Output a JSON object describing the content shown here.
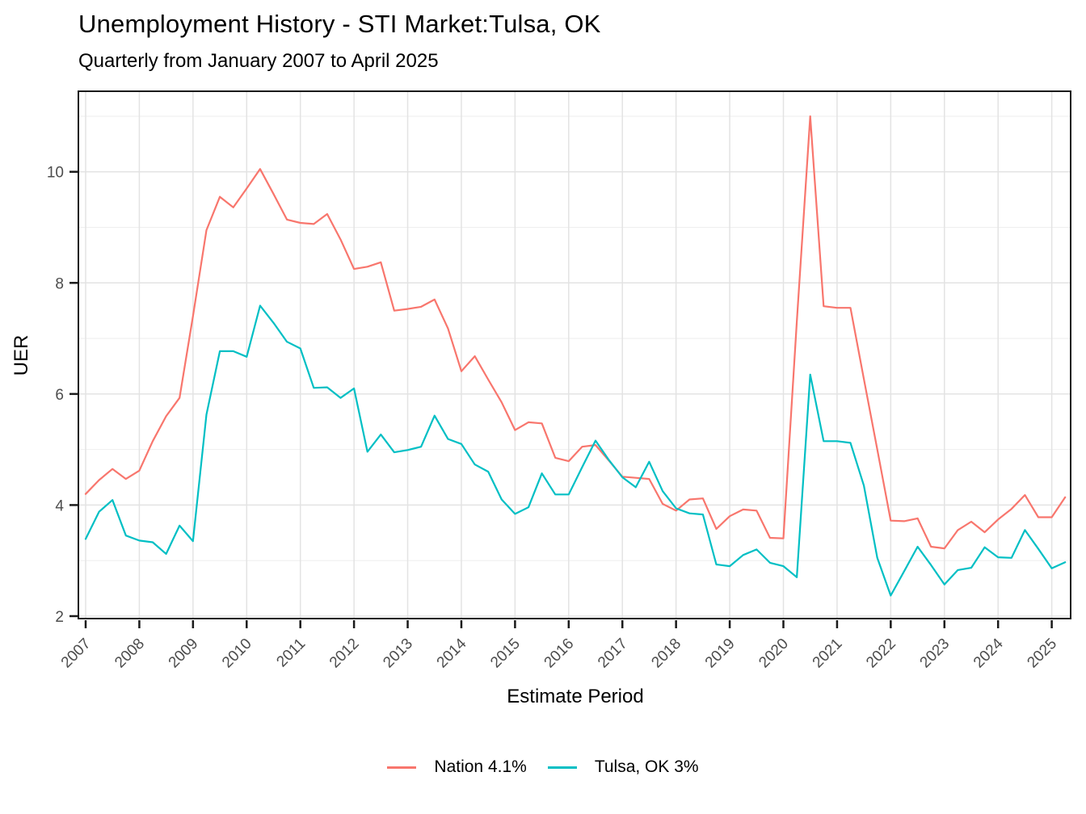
{
  "header": {
    "title": "Unemployment History - STI Market:Tulsa, OK",
    "subtitle": "Quarterly from January 2007 to April 2025"
  },
  "axes": {
    "x_title": "Estimate Period",
    "y_title": "UER",
    "x_tick_labels": [
      "2007",
      "2008",
      "2009",
      "2010",
      "2011",
      "2012",
      "2013",
      "2014",
      "2015",
      "2016",
      "2017",
      "2018",
      "2019",
      "2020",
      "2021",
      "2022",
      "2023",
      "2024",
      "2025"
    ],
    "y_tick_labels": [
      "2",
      "4",
      "6",
      "8",
      "10"
    ]
  },
  "legend": {
    "items": [
      {
        "label": "Nation 4.1%",
        "color": "#F8766D"
      },
      {
        "label": "Tulsa, OK 3%",
        "color": "#00BFC4"
      }
    ]
  },
  "chart_data": {
    "type": "line",
    "title": "Unemployment History - STI Market:Tulsa, OK",
    "subtitle": "Quarterly from January 2007 to April 2025",
    "xlabel": "Estimate Period",
    "ylabel": "UER",
    "x_start_year": 2007.0,
    "x_step_years": 0.25,
    "x_end_label": "April 2025",
    "xlim": [
      2006.8645,
      2025.352
    ],
    "ylim": [
      1.956,
      11.45
    ],
    "x_major_breaks": [
      2007,
      2008,
      2009,
      2010,
      2011,
      2012,
      2013,
      2014,
      2015,
      2016,
      2017,
      2018,
      2019,
      2020,
      2021,
      2022,
      2023,
      2024,
      2025
    ],
    "y_major_breaks": [
      2,
      4,
      6,
      8,
      10
    ],
    "y_minor_breaks": [
      3,
      5,
      7,
      9,
      11
    ],
    "grid": "on",
    "legend_position": "bottom",
    "colors": {
      "major_grid": "#e3e3e3",
      "minor_grid": "#eeeeee",
      "panel_border": "#1a1a1a",
      "tick_label": "#4d4d4d"
    },
    "series": [
      {
        "name": "Nation 4.1%",
        "color": "#F8766D",
        "values": [
          4.2,
          4.45,
          4.65,
          4.47,
          4.62,
          5.15,
          5.6,
          5.93,
          7.4,
          8.95,
          9.55,
          9.36,
          9.7,
          10.05,
          9.6,
          9.14,
          9.08,
          9.06,
          9.24,
          8.78,
          8.25,
          8.29,
          8.37,
          7.5,
          7.53,
          7.57,
          7.7,
          7.18,
          6.41,
          6.68,
          6.26,
          5.85,
          5.35,
          5.49,
          5.47,
          4.85,
          4.79,
          5.05,
          5.08,
          4.8,
          4.51,
          4.49,
          4.47,
          4.02,
          3.9,
          4.1,
          4.12,
          3.57,
          3.8,
          3.92,
          3.9,
          3.41,
          3.4,
          7.3,
          11.0,
          7.58,
          7.55,
          7.55,
          6.27,
          5.0,
          3.72,
          3.71,
          3.76,
          3.25,
          3.22,
          3.55,
          3.7,
          3.51,
          3.74,
          3.93,
          4.18,
          3.78,
          3.78,
          4.14
        ]
      },
      {
        "name": "Tulsa, OK 3%",
        "color": "#00BFC4",
        "values": [
          3.39,
          3.88,
          4.09,
          3.45,
          3.36,
          3.33,
          3.12,
          3.63,
          3.35,
          5.63,
          6.77,
          6.77,
          6.67,
          7.59,
          7.28,
          6.94,
          6.82,
          6.11,
          6.12,
          5.93,
          6.1,
          4.96,
          5.27,
          4.95,
          4.99,
          5.05,
          5.61,
          5.19,
          5.1,
          4.73,
          4.6,
          4.1,
          3.84,
          3.96,
          4.57,
          4.19,
          4.19,
          4.68,
          5.16,
          4.81,
          4.5,
          4.32,
          4.78,
          4.25,
          3.94,
          3.85,
          3.83,
          2.93,
          2.9,
          3.1,
          3.2,
          2.96,
          2.9,
          2.7,
          6.35,
          5.15,
          5.15,
          5.12,
          4.35,
          3.05,
          2.37,
          2.81,
          3.25,
          2.92,
          2.57,
          2.83,
          2.87,
          3.24,
          3.06,
          3.05,
          3.55,
          3.21,
          2.86,
          2.97
        ]
      }
    ]
  }
}
